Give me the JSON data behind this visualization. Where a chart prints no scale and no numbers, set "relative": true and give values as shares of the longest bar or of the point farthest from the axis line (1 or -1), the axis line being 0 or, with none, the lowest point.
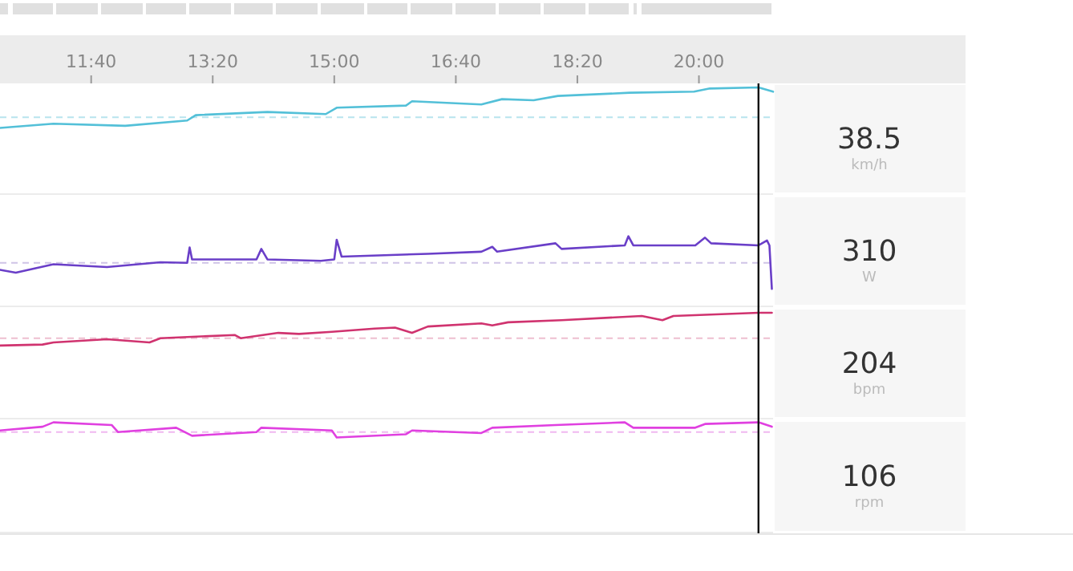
{
  "chart_data": [
    {
      "type": "line",
      "relative": true,
      "xlim": [
        625,
        1261
      ],
      "xticks": [
        {
          "value": 700,
          "label": "11:40"
        },
        {
          "value": 800,
          "label": "13:20"
        },
        {
          "value": 900,
          "label": "15:00"
        },
        {
          "value": 1000,
          "label": "16:40"
        },
        {
          "value": 1100,
          "label": "18:20"
        },
        {
          "value": 1200,
          "label": "20:00"
        }
      ],
      "tick_labels": "x",
      "series": [
        {
          "color": "#53c0d8",
          "x": [
            625,
            669,
            728,
            779,
            786,
            845,
            893,
            902,
            959,
            964,
            1021,
            1038,
            1064,
            1084,
            1143,
            1196,
            1209,
            1249,
            1261
          ],
          "values": [
            0.62,
            0.66,
            0.64,
            0.69,
            0.74,
            0.77,
            0.75,
            0.81,
            0.83,
            0.87,
            0.84,
            0.89,
            0.88,
            0.92,
            0.95,
            0.96,
            0.99,
            1,
            0.96
          ]
        }
      ],
      "ref_lines": [
        {
          "axis": "y",
          "value": 0.72,
          "color": "#b8e4ee",
          "line_style": "dashed"
        },
        {
          "axis": "x",
          "value": 1249,
          "color": "#111111",
          "line_style": "solid"
        }
      ]
    },
    {
      "type": "line",
      "relative": true,
      "xlim": [
        625,
        1261
      ],
      "tick_labels": false,
      "series": [
        {
          "color": "#6a3fc8",
          "x": [
            625,
            638,
            669,
            713,
            757,
            779,
            781,
            783,
            836,
            840,
            845,
            889,
            900,
            902,
            906,
            977,
            1021,
            1030,
            1034,
            1082,
            1087,
            1139,
            1142,
            1146,
            1197,
            1205,
            1210,
            1249,
            1256,
            1258,
            1260
          ],
          "values": [
            0.52,
            0.48,
            0.6,
            0.56,
            0.63,
            0.62,
            0.84,
            0.67,
            0.67,
            0.82,
            0.67,
            0.65,
            0.67,
            0.95,
            0.71,
            0.75,
            0.78,
            0.85,
            0.78,
            0.9,
            0.82,
            0.87,
            1,
            0.87,
            0.87,
            0.98,
            0.9,
            0.87,
            0.94,
            0.87,
            0.25
          ]
        }
      ],
      "ref_lines": [
        {
          "axis": "y",
          "value": 0.62,
          "color": "#cfc4e6",
          "line_style": "dashed"
        },
        {
          "axis": "x",
          "value": 1249,
          "color": "#111111",
          "line_style": "solid"
        }
      ]
    },
    {
      "type": "line",
      "relative": true,
      "xlim": [
        625,
        1261
      ],
      "tick_labels": false,
      "series": [
        {
          "color": "#d0336f",
          "x": [
            625,
            660,
            669,
            713,
            748,
            757,
            818,
            823,
            854,
            871,
            898,
            933,
            950,
            964,
            977,
            1021,
            1030,
            1043,
            1087,
            1153,
            1170,
            1179,
            1249,
            1260
          ],
          "values": [
            0.69,
            0.7,
            0.72,
            0.75,
            0.72,
            0.76,
            0.79,
            0.76,
            0.81,
            0.8,
            0.82,
            0.85,
            0.86,
            0.81,
            0.87,
            0.9,
            0.88,
            0.91,
            0.93,
            0.97,
            0.93,
            0.97,
            1,
            1
          ]
        }
      ],
      "ref_lines": [
        {
          "axis": "y",
          "value": 0.76,
          "color": "#eebfd0",
          "line_style": "dashed"
        },
        {
          "axis": "x",
          "value": 1249,
          "color": "#111111",
          "line_style": "solid"
        }
      ]
    },
    {
      "type": "line",
      "relative": true,
      "xlim": [
        625,
        1261
      ],
      "tick_labels": false,
      "series": [
        {
          "color": "#e040e0",
          "x": [
            625,
            660,
            669,
            717,
            722,
            770,
            783,
            836,
            840,
            898,
            902,
            959,
            964,
            1021,
            1030,
            1082,
            1139,
            1146,
            1197,
            1205,
            1249,
            1260
          ],
          "values": [
            0.926,
            0.96,
            1,
            0.975,
            0.912,
            0.951,
            0.878,
            0.912,
            0.951,
            0.926,
            0.863,
            0.892,
            0.926,
            0.903,
            0.951,
            0.975,
            1,
            0.951,
            0.951,
            0.985,
            1,
            0.96
          ]
        }
      ],
      "ref_lines": [
        {
          "axis": "y",
          "value": 0.912,
          "color": "#f0b8f0",
          "line_style": "dashed"
        },
        {
          "axis": "x",
          "value": 1249,
          "color": "#111111",
          "line_style": "solid"
        }
      ]
    },
    {
      "type": "other",
      "annotations": [
        "38.5",
        "km/h",
        "310",
        "W",
        "204",
        "bpm",
        "106",
        "rpm"
      ]
    }
  ]
}
